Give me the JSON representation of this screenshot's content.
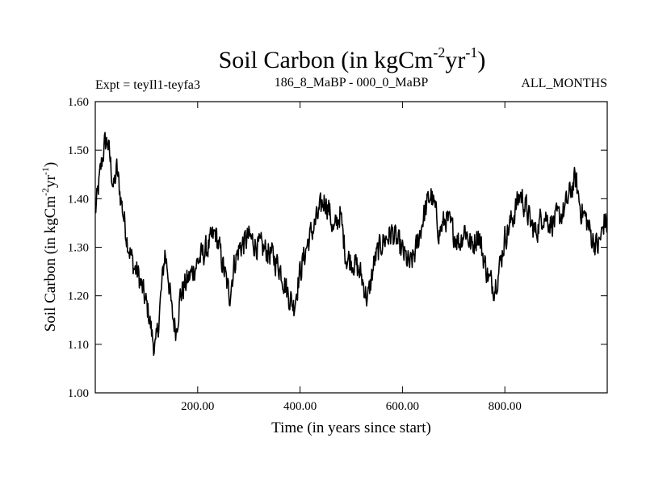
{
  "chart_data": {
    "type": "line",
    "title": {
      "text": "Soil Carbon (in kgCm",
      "sup1": "-2",
      "mid": "yr",
      "sup2": "-1",
      "end": ")"
    },
    "subtitle_left": "Expt = teyIl1-teyfa3",
    "subtitle_center": "186_8_MaBP - 000_0_MaBP",
    "subtitle_right": "ALL_MONTHS",
    "xlabel": "Time (in years since start)",
    "ylabel": {
      "text": "Soil Carbon (in kgCm",
      "sup1": "-2",
      "mid": "yr",
      "sup2": "-1",
      "end": ")"
    },
    "xlim": [
      0,
      1000
    ],
    "ylim": [
      1.0,
      1.6
    ],
    "x_ticks": [
      200,
      400,
      600,
      800
    ],
    "x_tick_labels": [
      "200.00",
      "400.00",
      "600.00",
      "800.00"
    ],
    "y_ticks": [
      1.0,
      1.1,
      1.2,
      1.3,
      1.4,
      1.5,
      1.6
    ],
    "y_tick_labels": [
      "1.00",
      "1.10",
      "1.20",
      "1.30",
      "1.40",
      "1.50",
      "1.60"
    ],
    "grid": false,
    "series": [
      {
        "name": "Soil Carbon",
        "color": "#000000",
        "trend": {
          "x": [
            0,
            6,
            12,
            18,
            24,
            30,
            36,
            42,
            50,
            56,
            62,
            68,
            75,
            85,
            95,
            105,
            112,
            118,
            124,
            130,
            136,
            142,
            150,
            158,
            166,
            174,
            185,
            200,
            220,
            235,
            250,
            262,
            272,
            282,
            300,
            320,
            340,
            360,
            378,
            388,
            398,
            415,
            430,
            448,
            456,
            466,
            478,
            490,
            505,
            520,
            532,
            545,
            560,
            580,
            600,
            615,
            628,
            640,
            655,
            663,
            672,
            685,
            700,
            712,
            722,
            735,
            748,
            760,
            770,
            780,
            790,
            800,
            815,
            830,
            842,
            850,
            860,
            875,
            890,
            905,
            918,
            930,
            938,
            948,
            958,
            970,
            982,
            990,
            995,
            1000
          ],
          "y": [
            1.37,
            1.42,
            1.47,
            1.51,
            1.52,
            1.47,
            1.42,
            1.46,
            1.4,
            1.36,
            1.32,
            1.29,
            1.26,
            1.24,
            1.2,
            1.16,
            1.11,
            1.09,
            1.15,
            1.22,
            1.29,
            1.25,
            1.16,
            1.13,
            1.2,
            1.22,
            1.24,
            1.27,
            1.3,
            1.33,
            1.26,
            1.2,
            1.27,
            1.3,
            1.32,
            1.3,
            1.29,
            1.26,
            1.2,
            1.18,
            1.24,
            1.31,
            1.35,
            1.4,
            1.38,
            1.33,
            1.37,
            1.28,
            1.27,
            1.24,
            1.19,
            1.27,
            1.31,
            1.33,
            1.29,
            1.26,
            1.3,
            1.36,
            1.41,
            1.38,
            1.33,
            1.36,
            1.33,
            1.31,
            1.34,
            1.3,
            1.33,
            1.27,
            1.23,
            1.22,
            1.26,
            1.32,
            1.36,
            1.41,
            1.38,
            1.35,
            1.33,
            1.37,
            1.35,
            1.36,
            1.38,
            1.42,
            1.44,
            1.38,
            1.36,
            1.32,
            1.3,
            1.33,
            1.36,
            1.34
          ],
          "noise_amplitude": 0.025,
          "samples": 1000
        }
      }
    ]
  }
}
